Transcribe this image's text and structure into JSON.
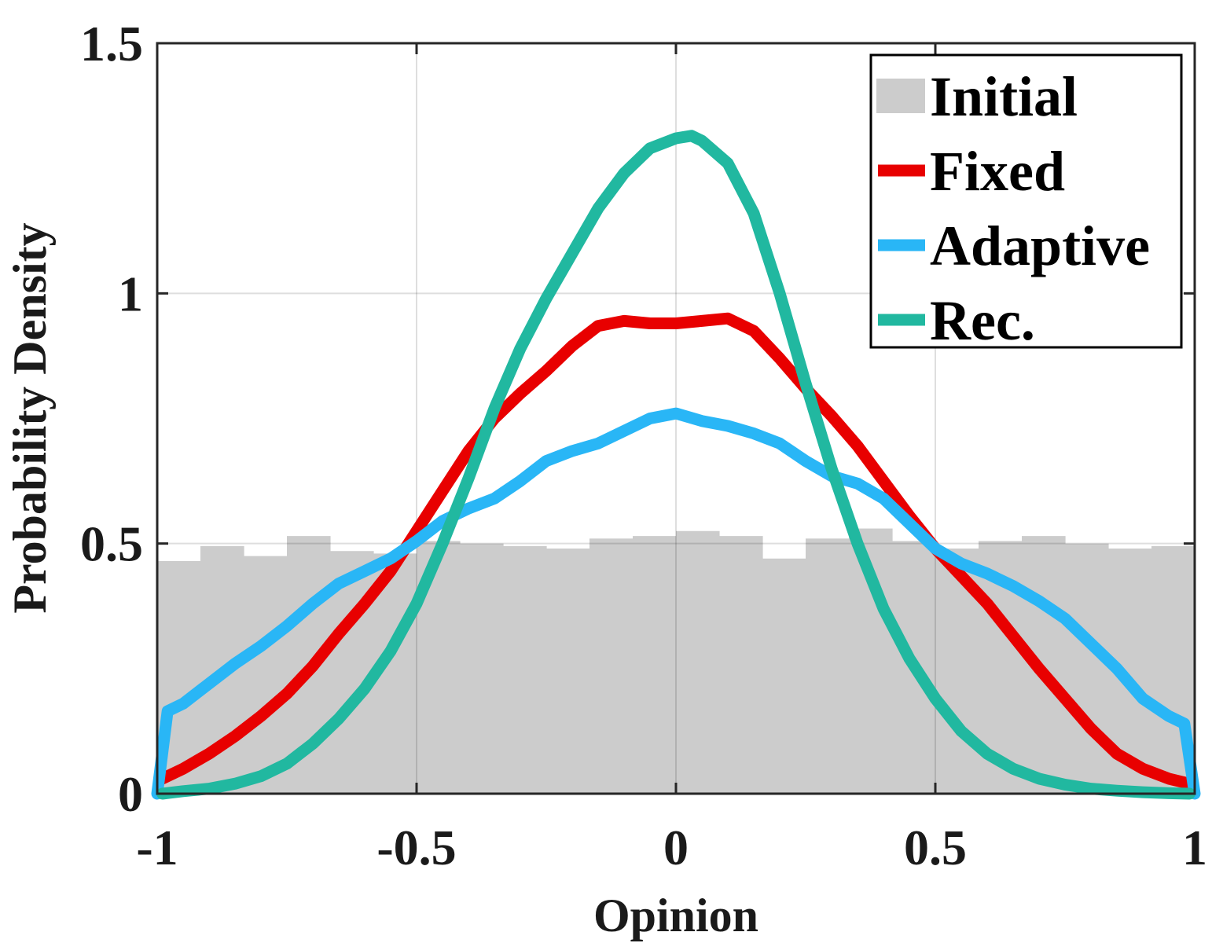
{
  "chart_data": {
    "type": "line",
    "title": "",
    "xlabel": "Opinion",
    "ylabel": "Probability Density",
    "xlim": [
      -1,
      1
    ],
    "ylim": [
      0,
      1.5
    ],
    "xticks": [
      -1,
      -0.5,
      0,
      0.5,
      1
    ],
    "xtick_labels": [
      "-1",
      "-0.5",
      "0",
      "0.5",
      "1"
    ],
    "yticks": [
      0,
      0.5,
      1,
      1.5
    ],
    "ytick_labels": [
      "0",
      "0.5",
      "1",
      "1.5"
    ],
    "grid": true,
    "legend_position": "top-right",
    "histogram": {
      "name": "Initial",
      "color": "#cccccc",
      "bin_edges": [
        -1,
        -0.9167,
        -0.8333,
        -0.75,
        -0.6667,
        -0.5833,
        -0.5,
        -0.4167,
        -0.3333,
        -0.25,
        -0.1667,
        -0.0833,
        0,
        0.0833,
        0.1667,
        0.25,
        0.3333,
        0.4167,
        0.5,
        0.5833,
        0.6667,
        0.75,
        0.8333,
        0.9167,
        1
      ],
      "values": [
        0.465,
        0.495,
        0.475,
        0.515,
        0.485,
        0.48,
        0.505,
        0.5,
        0.495,
        0.49,
        0.51,
        0.515,
        0.525,
        0.515,
        0.47,
        0.51,
        0.53,
        0.505,
        0.49,
        0.505,
        0.515,
        0.5,
        0.49,
        0.495
      ]
    },
    "series": [
      {
        "name": "Fixed",
        "color": "#e80000",
        "x": [
          -0.99,
          -0.95,
          -0.9,
          -0.85,
          -0.8,
          -0.75,
          -0.7,
          -0.65,
          -0.6,
          -0.55,
          -0.5,
          -0.45,
          -0.4,
          -0.35,
          -0.3,
          -0.25,
          -0.2,
          -0.15,
          -0.1,
          -0.05,
          0,
          0.05,
          0.1,
          0.15,
          0.2,
          0.25,
          0.3,
          0.35,
          0.4,
          0.45,
          0.5,
          0.55,
          0.6,
          0.65,
          0.7,
          0.75,
          0.8,
          0.85,
          0.9,
          0.95,
          0.99
        ],
        "y": [
          0.03,
          0.05,
          0.08,
          0.115,
          0.155,
          0.2,
          0.255,
          0.32,
          0.38,
          0.445,
          0.525,
          0.605,
          0.685,
          0.75,
          0.8,
          0.845,
          0.895,
          0.935,
          0.945,
          0.94,
          0.94,
          0.945,
          0.95,
          0.925,
          0.87,
          0.81,
          0.755,
          0.695,
          0.625,
          0.555,
          0.49,
          0.435,
          0.38,
          0.315,
          0.25,
          0.19,
          0.13,
          0.08,
          0.05,
          0.03,
          0.02
        ]
      },
      {
        "name": "Adaptive",
        "color": "#29b6f6",
        "x": [
          -1,
          -0.98,
          -0.95,
          -0.9,
          -0.85,
          -0.8,
          -0.75,
          -0.7,
          -0.65,
          -0.6,
          -0.55,
          -0.5,
          -0.45,
          -0.4,
          -0.35,
          -0.3,
          -0.25,
          -0.2,
          -0.15,
          -0.1,
          -0.05,
          0,
          0.05,
          0.1,
          0.15,
          0.2,
          0.25,
          0.3,
          0.35,
          0.4,
          0.45,
          0.5,
          0.55,
          0.6,
          0.65,
          0.7,
          0.75,
          0.8,
          0.85,
          0.9,
          0.95,
          0.98,
          1
        ],
        "y": [
          0.0,
          0.165,
          0.18,
          0.22,
          0.26,
          0.295,
          0.335,
          0.38,
          0.42,
          0.445,
          0.47,
          0.505,
          0.545,
          0.57,
          0.59,
          0.625,
          0.665,
          0.685,
          0.7,
          0.725,
          0.75,
          0.76,
          0.745,
          0.735,
          0.72,
          0.7,
          0.665,
          0.635,
          0.62,
          0.59,
          0.54,
          0.49,
          0.46,
          0.44,
          0.415,
          0.385,
          0.35,
          0.3,
          0.25,
          0.19,
          0.155,
          0.14,
          0.0
        ]
      },
      {
        "name": "Rec.",
        "color": "#21b8a0",
        "x": [
          -0.99,
          -0.95,
          -0.9,
          -0.85,
          -0.8,
          -0.75,
          -0.7,
          -0.65,
          -0.6,
          -0.55,
          -0.5,
          -0.45,
          -0.4,
          -0.35,
          -0.3,
          -0.25,
          -0.2,
          -0.15,
          -0.1,
          -0.05,
          0,
          0.03,
          0.05,
          0.1,
          0.15,
          0.2,
          0.25,
          0.3,
          0.35,
          0.4,
          0.45,
          0.5,
          0.55,
          0.6,
          0.65,
          0.7,
          0.75,
          0.8,
          0.85,
          0.9,
          0.95,
          0.99
        ],
        "y": [
          0.0,
          0.005,
          0.01,
          0.02,
          0.035,
          0.06,
          0.1,
          0.15,
          0.21,
          0.285,
          0.38,
          0.5,
          0.63,
          0.77,
          0.89,
          0.99,
          1.08,
          1.17,
          1.24,
          1.29,
          1.31,
          1.315,
          1.305,
          1.26,
          1.16,
          1.0,
          0.82,
          0.65,
          0.5,
          0.37,
          0.27,
          0.19,
          0.125,
          0.08,
          0.05,
          0.03,
          0.018,
          0.01,
          0.006,
          0.003,
          0.001,
          0.0
        ]
      }
    ]
  }
}
